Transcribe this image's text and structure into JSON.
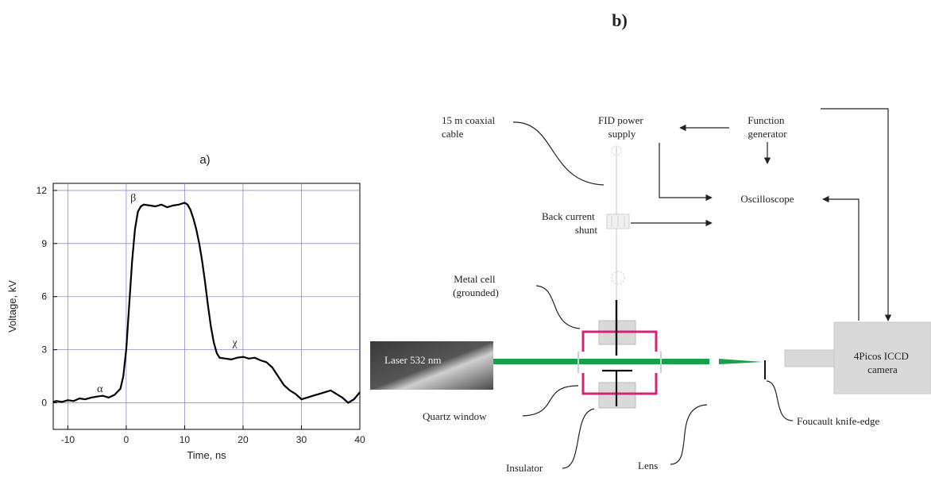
{
  "panel_a": {
    "label": "a)",
    "chart_data": {
      "type": "line",
      "title": "",
      "xlabel": "Time, ns",
      "ylabel": "Voltage, kV",
      "xlim": [
        -12.5,
        40
      ],
      "ylim": [
        -1.5,
        12.4
      ],
      "xticks": [
        -10,
        0,
        10,
        20,
        30,
        40
      ],
      "yticks": [
        0,
        3,
        6,
        9,
        12
      ],
      "grid": true,
      "annotations": [
        {
          "text": "α",
          "x": -4.5,
          "y": 0.6
        },
        {
          "text": "β",
          "x": 1.2,
          "y": 11.4
        },
        {
          "text": "χ",
          "x": 18.6,
          "y": 3.2
        }
      ],
      "series": [
        {
          "name": "",
          "x": [
            -12.5,
            -12,
            -11,
            -10,
            -9,
            -8,
            -7,
            -6,
            -5,
            -4,
            -3,
            -2,
            -1,
            -0.5,
            0,
            0.5,
            1,
            1.5,
            2,
            2.5,
            3,
            4,
            5,
            6,
            7,
            8,
            9,
            10,
            10.5,
            11,
            11.5,
            12,
            12.5,
            13,
            13.5,
            14,
            14.5,
            15,
            15.5,
            16,
            17,
            18,
            19,
            20,
            21,
            22,
            23,
            24,
            25,
            26,
            27,
            28,
            29,
            30,
            31,
            32,
            33,
            34,
            35,
            36,
            37,
            38,
            39,
            40
          ],
          "y": [
            0.05,
            0.1,
            0.05,
            0.15,
            0.1,
            0.25,
            0.2,
            0.3,
            0.35,
            0.4,
            0.3,
            0.45,
            0.8,
            1.5,
            3.0,
            5.5,
            8.0,
            9.8,
            10.8,
            11.1,
            11.2,
            11.15,
            11.1,
            11.2,
            11.05,
            11.15,
            11.2,
            11.3,
            11.2,
            10.9,
            10.4,
            9.8,
            9.0,
            8.0,
            6.8,
            5.5,
            4.3,
            3.4,
            2.8,
            2.55,
            2.5,
            2.45,
            2.55,
            2.6,
            2.5,
            2.55,
            2.4,
            2.3,
            2.0,
            1.5,
            1.0,
            0.7,
            0.5,
            0.2,
            0.3,
            0.4,
            0.5,
            0.6,
            0.7,
            0.5,
            0.3,
            0.0,
            0.2,
            0.6
          ]
        }
      ]
    }
  },
  "panel_b": {
    "label": "b)",
    "labels": {
      "power_supply": [
        "FID power",
        "supply"
      ],
      "function_generator": [
        "Function",
        "generator"
      ],
      "coax_cable": [
        "15 m coaxial",
        "cable"
      ],
      "oscilloscope": "Oscilloscope",
      "back_current_shunt": [
        "Back current",
        "shunt"
      ],
      "metal_cell": [
        "Metal cell",
        "(grounded)"
      ],
      "laser": "Laser 532 nm",
      "camera": [
        "4Picos ICCD",
        "camera"
      ],
      "quartz_window": "Quartz window",
      "insulator": "Insulator",
      "lens": "Lens",
      "knife_edge": "Foucault knife-edge"
    },
    "colors": {
      "beam": "#1aa04a",
      "cell": "#d4237a",
      "box": "#d9d9d9"
    }
  }
}
